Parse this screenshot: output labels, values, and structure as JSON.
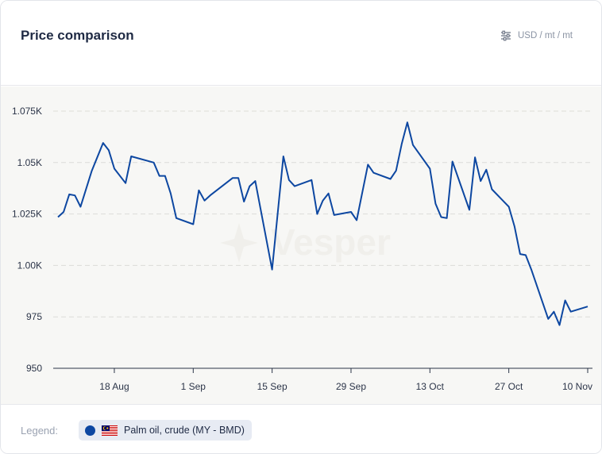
{
  "header": {
    "title": "Price comparison",
    "units": "USD / mt / mt",
    "settings_icon": "sliders-icon"
  },
  "watermark": {
    "text": "Vesper"
  },
  "legend": {
    "label": "Legend:",
    "items": [
      {
        "name": "Palm oil, crude (MY - BMD)",
        "color": "#0d47a1",
        "flag": "malaysia-flag-icon"
      }
    ]
  },
  "chart_data": {
    "type": "line",
    "title": "Price comparison",
    "xlabel": "",
    "ylabel": "",
    "y_unit": "USD / mt / mt",
    "ylim": [
      950,
      1080
    ],
    "yticks": [
      950,
      975,
      1000,
      1025,
      1050,
      1075
    ],
    "ytick_labels": [
      "950",
      "975",
      "1.00K",
      "1.025K",
      "1.05K",
      "1.075K"
    ],
    "xlim": [
      "2023-08-08",
      "2023-11-10"
    ],
    "xticks": [
      "2023-08-18",
      "2023-09-01",
      "2023-09-15",
      "2023-09-29",
      "2023-10-13",
      "2023-10-27",
      "2023-11-10"
    ],
    "xtick_labels": [
      "18 Aug",
      "1 Sep",
      "15 Sep",
      "29 Sep",
      "13 Oct",
      "27 Oct",
      "10 Nov"
    ],
    "grid": {
      "y": true,
      "style": "dashed"
    },
    "series": [
      {
        "name": "Palm oil, crude (MY - BMD)",
        "color": "#0d47a1",
        "x": [
          "2023-08-08",
          "2023-08-09",
          "2023-08-10",
          "2023-08-11",
          "2023-08-12",
          "2023-08-14",
          "2023-08-16",
          "2023-08-17",
          "2023-08-18",
          "2023-08-20",
          "2023-08-21",
          "2023-08-25",
          "2023-08-26",
          "2023-08-27",
          "2023-08-28",
          "2023-08-29",
          "2023-09-01",
          "2023-09-02",
          "2023-09-03",
          "2023-09-04",
          "2023-09-08",
          "2023-09-09",
          "2023-09-10",
          "2023-09-11",
          "2023-09-12",
          "2023-09-15",
          "2023-09-17",
          "2023-09-18",
          "2023-09-19",
          "2023-09-22",
          "2023-09-23",
          "2023-09-24",
          "2023-09-25",
          "2023-09-26",
          "2023-09-29",
          "2023-09-30",
          "2023-10-02",
          "2023-10-03",
          "2023-10-06",
          "2023-10-07",
          "2023-10-08",
          "2023-10-09",
          "2023-10-10",
          "2023-10-13",
          "2023-10-14",
          "2023-10-15",
          "2023-10-16",
          "2023-10-17",
          "2023-10-20",
          "2023-10-21",
          "2023-10-22",
          "2023-10-23",
          "2023-10-24",
          "2023-10-27",
          "2023-10-28",
          "2023-10-29",
          "2023-10-30",
          "2023-10-31",
          "2023-11-03",
          "2023-11-04",
          "2023-11-05",
          "2023-11-06",
          "2023-11-07",
          "2023-11-10"
        ],
        "values": [
          1023.5,
          1026,
          1034.5,
          1034,
          1028.5,
          1046,
          1059.5,
          1056,
          1047,
          1040,
          1053,
          1050,
          1043.5,
          1043.5,
          1035,
          1023,
          1020,
          1036.5,
          1031.5,
          1034,
          1042.5,
          1042.5,
          1031,
          1038.5,
          1041,
          998,
          1053,
          1041.5,
          1038.5,
          1041.5,
          1025,
          1031.5,
          1035,
          1024.5,
          1026,
          1022,
          1049,
          1045,
          1042,
          1046,
          1059,
          1069.5,
          1058.5,
          1047,
          1030,
          1023.5,
          1023,
          1050.5,
          1027,
          1052.5,
          1041,
          1046.5,
          1037,
          1028.5,
          1019,
          1005.5,
          1005,
          998,
          974,
          977.5,
          971,
          983,
          977.5,
          980
        ]
      }
    ]
  }
}
